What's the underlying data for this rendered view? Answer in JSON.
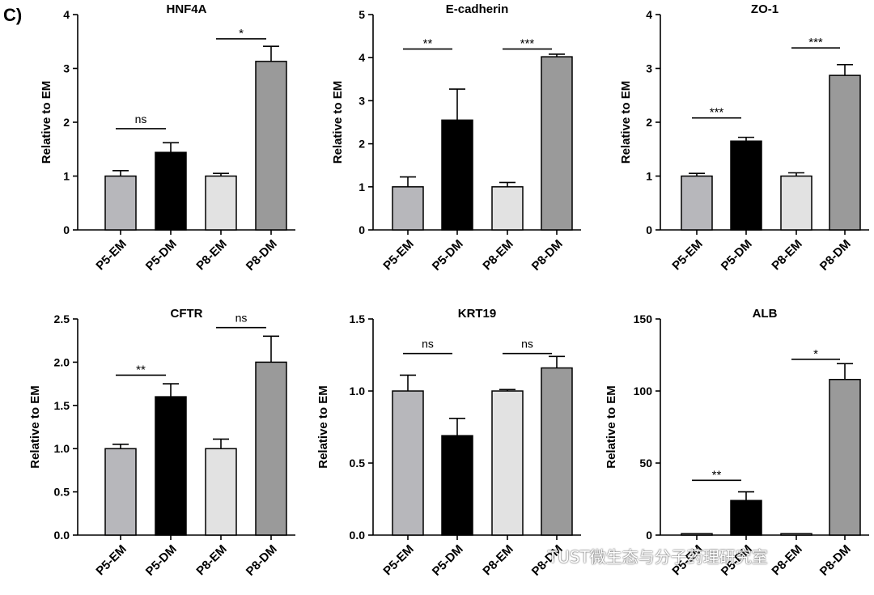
{
  "panel_label": "C)",
  "watermark": {
    "text": "TUST微生态与分子药理研究室",
    "icon": "wechat-icon"
  },
  "colors": {
    "P5-EM": "#b7b7bb",
    "P5-DM": "#000000",
    "P8-EM": "#e2e2e2",
    "P8-DM": "#9a9a9a"
  },
  "chart_data": [
    {
      "type": "bar",
      "title": "HNF4A",
      "ylabel": "Relative to EM",
      "categories": [
        "P5-EM",
        "P5-DM",
        "P8-EM",
        "P8-DM"
      ],
      "values": [
        1.0,
        1.44,
        1.0,
        3.13
      ],
      "errors": [
        0.1,
        0.18,
        0.05,
        0.28
      ],
      "ylim": [
        0,
        4
      ],
      "yticks": [
        "0",
        "1",
        "2",
        "3",
        "4"
      ],
      "annotations": [
        {
          "text": "ns",
          "from": 0,
          "to": 1,
          "y": 1.88
        },
        {
          "text": "*",
          "from": 2,
          "to": 3,
          "y": 3.55
        }
      ]
    },
    {
      "type": "bar",
      "title": "E-cadherin",
      "ylabel": "Relative to EM",
      "categories": [
        "P5-EM",
        "P5-DM",
        "P8-EM",
        "P8-DM"
      ],
      "values": [
        1.0,
        2.55,
        1.0,
        4.02
      ],
      "errors": [
        0.23,
        0.72,
        0.1,
        0.06
      ],
      "ylim": [
        0,
        5
      ],
      "yticks": [
        "0",
        "1",
        "2",
        "3",
        "4",
        "5"
      ],
      "annotations": [
        {
          "text": "**",
          "from": 0,
          "to": 1,
          "y": 4.2
        },
        {
          "text": "***",
          "from": 2,
          "to": 3,
          "y": 4.2
        }
      ]
    },
    {
      "type": "bar",
      "title": "ZO-1",
      "ylabel": "Relative to EM",
      "categories": [
        "P5-EM",
        "P5-DM",
        "P8-EM",
        "P8-DM"
      ],
      "values": [
        1.0,
        1.65,
        1.0,
        2.87
      ],
      "errors": [
        0.05,
        0.07,
        0.06,
        0.2
      ],
      "ylim": [
        0,
        4
      ],
      "yticks": [
        "0",
        "1",
        "2",
        "3",
        "4"
      ],
      "annotations": [
        {
          "text": "***",
          "from": 0,
          "to": 1,
          "y": 2.08
        },
        {
          "text": "***",
          "from": 2,
          "to": 3,
          "y": 3.38
        }
      ]
    },
    {
      "type": "bar",
      "title": "CFTR",
      "ylabel": "Relative to EM",
      "categories": [
        "P5-EM",
        "P5-DM",
        "P8-EM",
        "P8-DM"
      ],
      "values": [
        1.0,
        1.6,
        1.0,
        2.0
      ],
      "errors": [
        0.05,
        0.15,
        0.11,
        0.3
      ],
      "ylim": [
        0,
        2.5
      ],
      "yticks": [
        "0.0",
        "0.5",
        "1.0",
        "1.5",
        "2.0",
        "2.5"
      ],
      "annotations": [
        {
          "text": "**",
          "from": 0,
          "to": 1,
          "y": 1.85
        },
        {
          "text": "ns",
          "from": 2,
          "to": 3,
          "y": 2.4
        }
      ]
    },
    {
      "type": "bar",
      "title": "KRT19",
      "ylabel": "Relative to EM",
      "categories": [
        "P5-EM",
        "P5-DM",
        "P8-EM",
        "P8-DM"
      ],
      "values": [
        1.0,
        0.69,
        1.0,
        1.16
      ],
      "errors": [
        0.11,
        0.12,
        0.01,
        0.08
      ],
      "ylim": [
        0,
        1.5
      ],
      "yticks": [
        "0.0",
        "0.5",
        "1.0",
        "1.5"
      ],
      "annotations": [
        {
          "text": "ns",
          "from": 0,
          "to": 1,
          "y": 1.26
        },
        {
          "text": "ns",
          "from": 2,
          "to": 3,
          "y": 1.26
        }
      ]
    },
    {
      "type": "bar",
      "title": "ALB",
      "ylabel": "Relative to EM",
      "categories": [
        "P5-EM",
        "P5-DM",
        "P8-EM",
        "P8-DM"
      ],
      "values": [
        1.0,
        24.0,
        1.0,
        108.0
      ],
      "errors": [
        0,
        6,
        0,
        11
      ],
      "ylim": [
        0,
        150
      ],
      "yticks": [
        "0",
        "50",
        "100",
        "150"
      ],
      "annotations": [
        {
          "text": "**",
          "from": 0,
          "to": 1,
          "y": 38
        },
        {
          "text": "*",
          "from": 2,
          "to": 3,
          "y": 122
        }
      ]
    }
  ]
}
